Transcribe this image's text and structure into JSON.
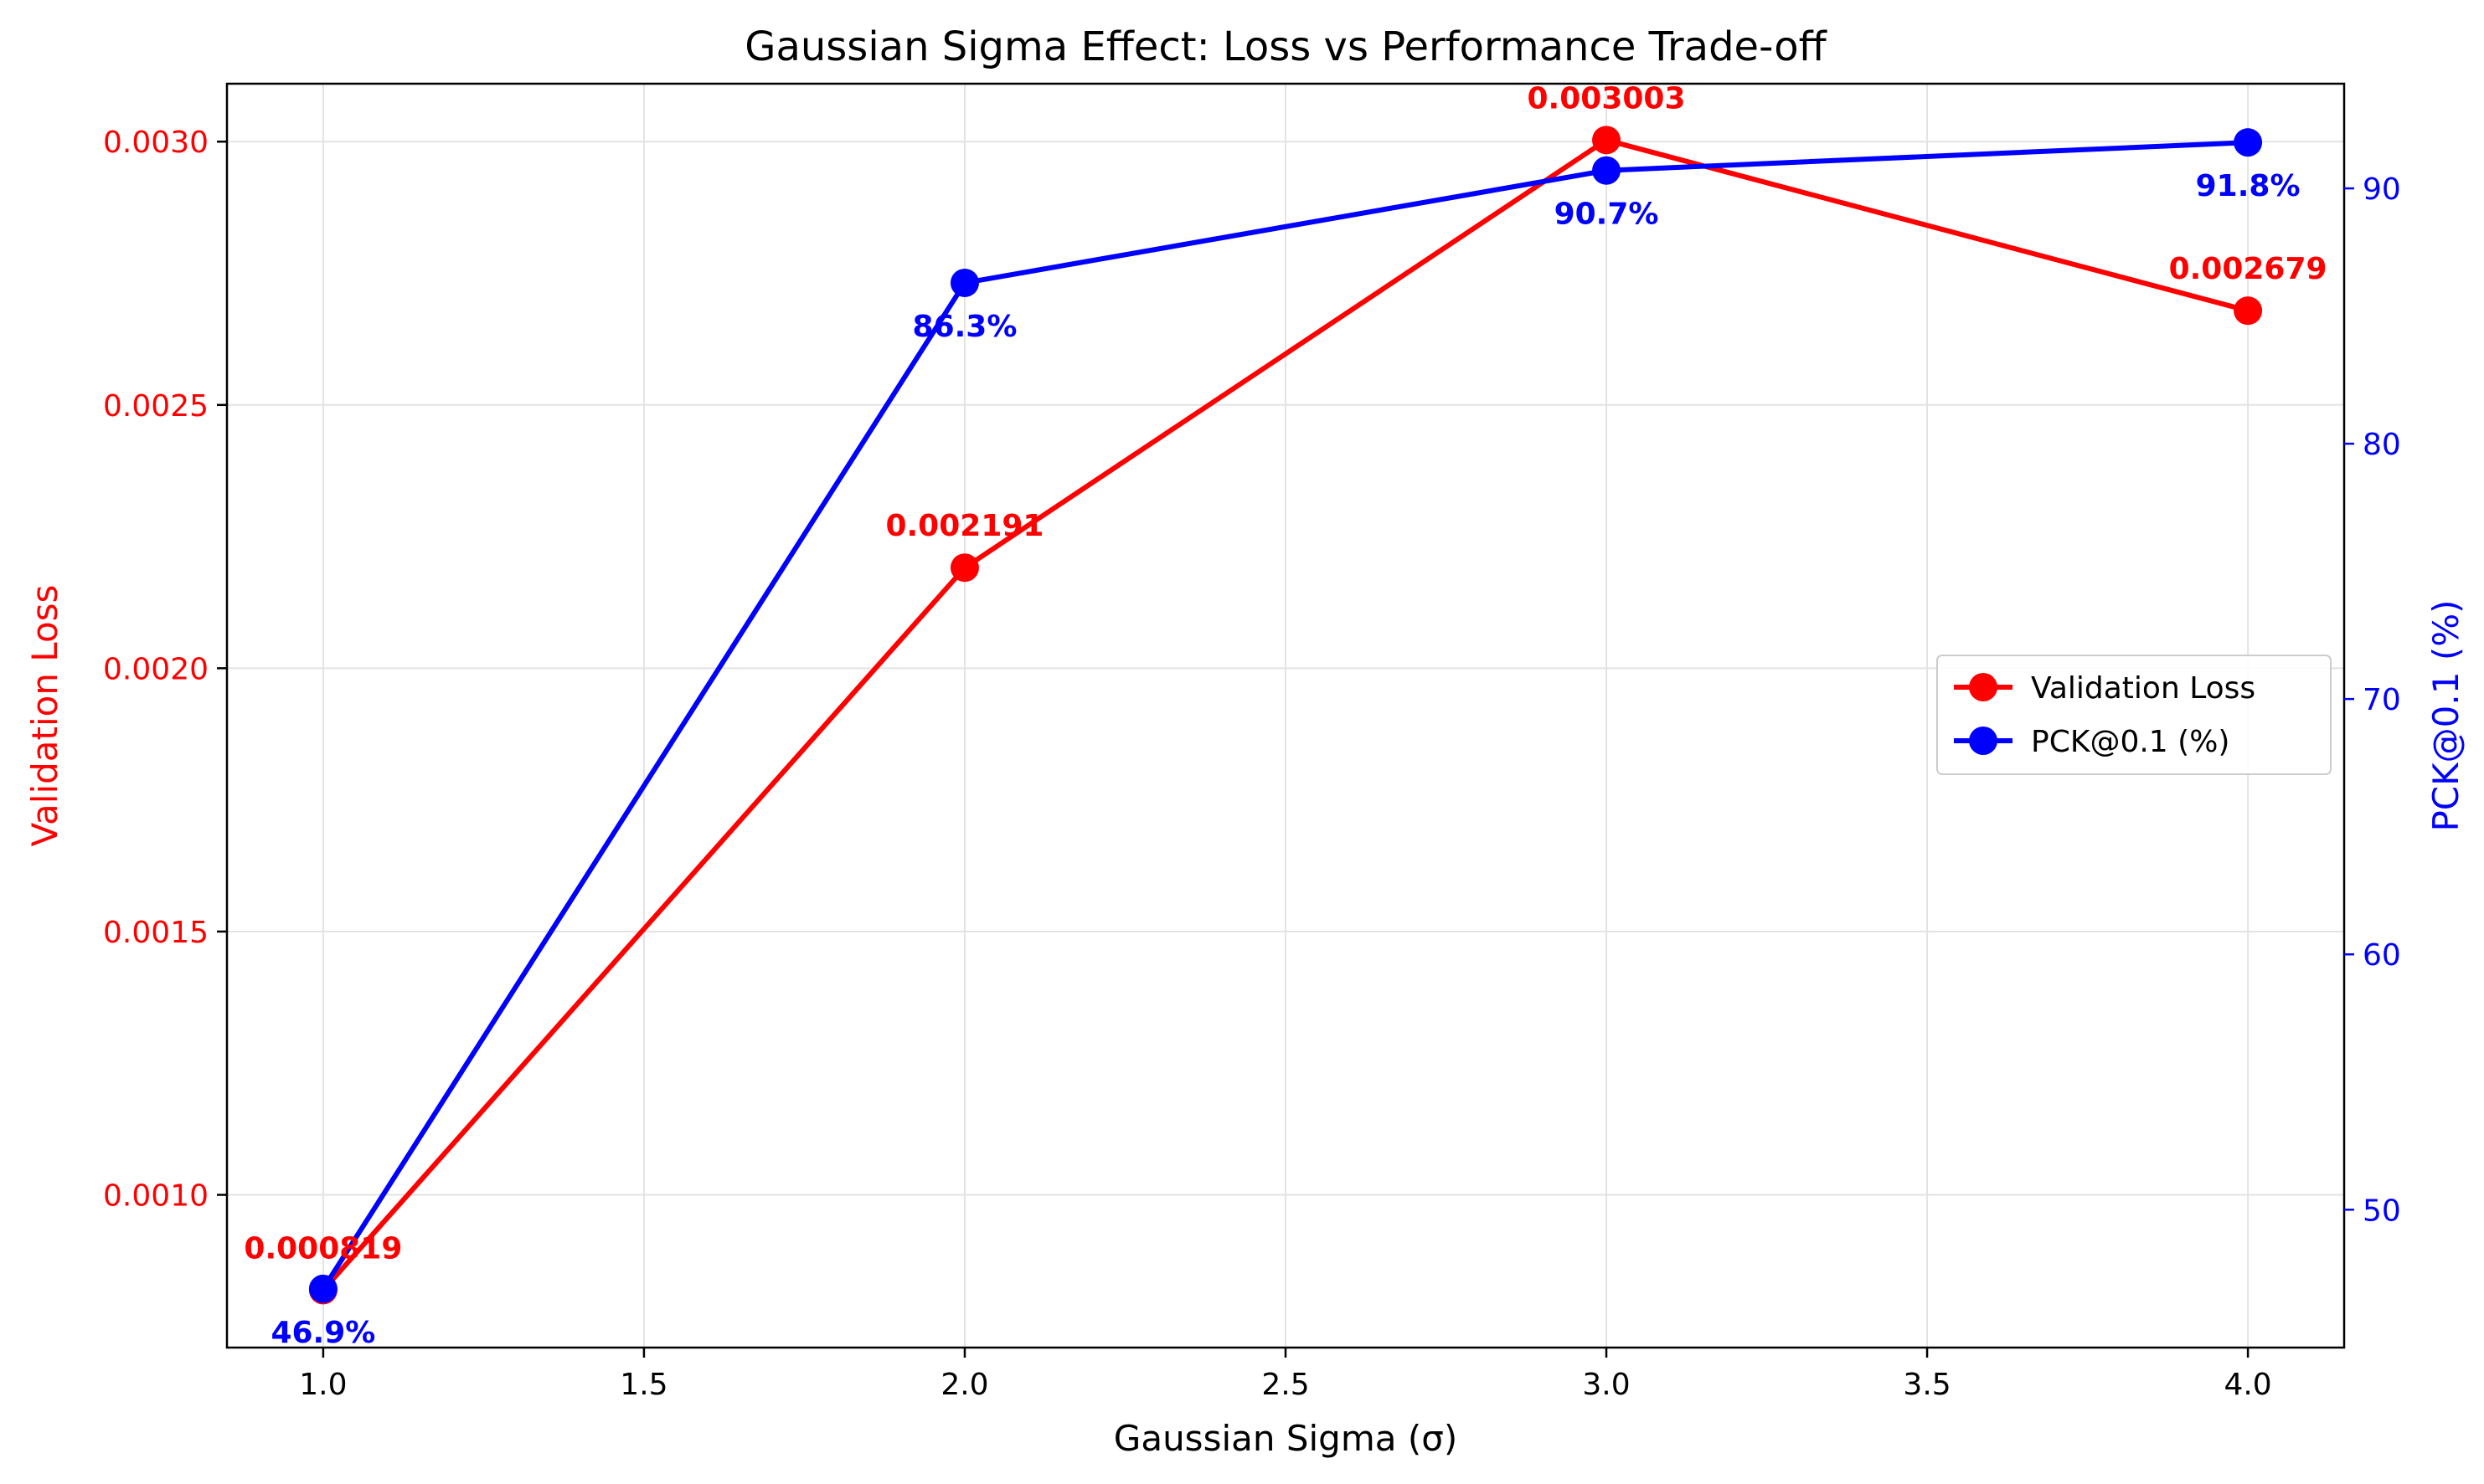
{
  "chart_data": {
    "type": "line",
    "title": "Gaussian Sigma Effect: Loss vs Performance Trade-off",
    "xlabel": "Gaussian Sigma (σ)",
    "xlim": [
      0.85,
      4.15
    ],
    "x_ticks": [
      1.0,
      1.5,
      2.0,
      2.5,
      3.0,
      3.5,
      4.0
    ],
    "x_tick_labels": [
      "1.0",
      "1.5",
      "2.0",
      "2.5",
      "3.0",
      "3.5",
      "4.0"
    ],
    "x": [
      1.0,
      2.0,
      3.0,
      4.0
    ],
    "grid": true,
    "legend_position": "center-right",
    "y_left": {
      "label": "Validation Loss",
      "color": "#ff0000",
      "ylim": [
        0.00071,
        0.00311
      ],
      "ticks": [
        0.001,
        0.0015,
        0.002,
        0.0025,
        0.003
      ],
      "tick_labels": [
        "0.0010",
        "0.0015",
        "0.0020",
        "0.0025",
        "0.0030"
      ]
    },
    "y_right": {
      "label": "PCK@0.1 (%)",
      "color": "#0000ff",
      "ylim": [
        44.6,
        94.1
      ],
      "ticks": [
        50,
        60,
        70,
        80,
        90
      ],
      "tick_labels": [
        "50",
        "60",
        "70",
        "80",
        "90"
      ]
    },
    "series": [
      {
        "name": "Validation Loss",
        "axis": "left",
        "color": "#ff0000",
        "values": [
          0.000819,
          0.002191,
          0.003003,
          0.002679
        ],
        "labels": [
          "0.000819",
          "0.002191",
          "0.003003",
          "0.002679"
        ]
      },
      {
        "name": "PCK@0.1 (%)",
        "axis": "right",
        "color": "#0000ff",
        "values": [
          46.9,
          86.3,
          90.7,
          91.8
        ],
        "labels": [
          "46.9%",
          "86.3%",
          "90.7%",
          "91.8%"
        ]
      }
    ]
  }
}
